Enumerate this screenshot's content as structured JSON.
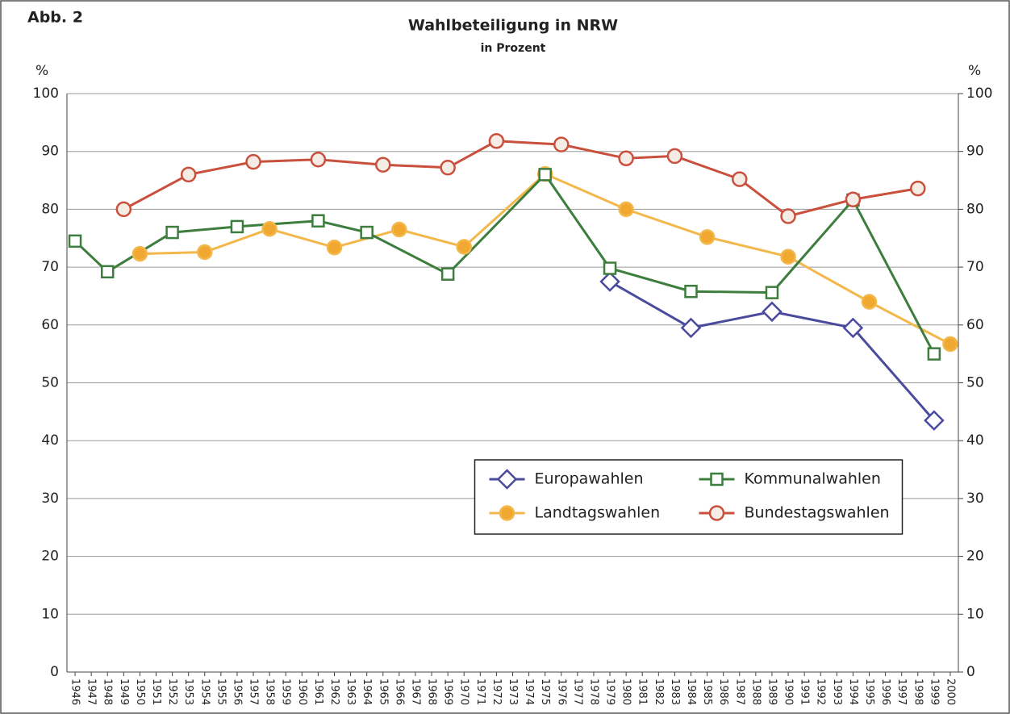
{
  "chart_data": {
    "type": "line",
    "figure_label": "Abb. 2",
    "title": "Wahlbeteiligung in NRW",
    "subtitle": "in Prozent",
    "ylabel": "%",
    "y2label": "%",
    "xlim": [
      1945.5,
      2000.5
    ],
    "xticks": [
      1946,
      1947,
      1948,
      1949,
      1950,
      1951,
      1952,
      1953,
      1954,
      1955,
      1956,
      1957,
      1958,
      1959,
      1960,
      1961,
      1962,
      1963,
      1964,
      1965,
      1966,
      1967,
      1968,
      1969,
      1970,
      1971,
      1972,
      1973,
      1974,
      1975,
      1976,
      1977,
      1978,
      1979,
      1980,
      1981,
      1982,
      1983,
      1984,
      1985,
      1986,
      1987,
      1988,
      1989,
      1990,
      1991,
      1992,
      1993,
      1994,
      1995,
      1996,
      1997,
      1998,
      1999,
      2000
    ],
    "ylim": [
      0,
      100
    ],
    "yticks": [
      0,
      10,
      20,
      30,
      40,
      50,
      60,
      70,
      80,
      90,
      100
    ],
    "y2lim": [
      0,
      100
    ],
    "y2ticks": [
      0,
      10,
      20,
      30,
      40,
      50,
      60,
      70,
      80,
      90,
      100
    ],
    "grid": true,
    "legend": "center",
    "series": [
      {
        "name": "Europawahlen",
        "color": "#4b4b9e",
        "marker": "diamond",
        "marker_fill": "#ffffff",
        "x": [
          1979,
          1984,
          1989,
          1994,
          1999
        ],
        "values": [
          67.5,
          59.5,
          62.3,
          59.5,
          43.5
        ]
      },
      {
        "name": "Landtagswahlen",
        "color": "#f2b84b",
        "marker": "circle",
        "marker_fill": "#f0a830",
        "x": [
          1950,
          1954,
          1958,
          1962,
          1966,
          1970,
          1975,
          1980,
          1985,
          1990,
          1995,
          2000
        ],
        "values": [
          72.3,
          72.6,
          76.6,
          73.4,
          76.5,
          73.5,
          86.1,
          80,
          75.2,
          71.8,
          64,
          56.7
        ]
      },
      {
        "name": "Kommunalwahlen",
        "color": "#3d7d3d",
        "marker": "square",
        "marker_fill": "#ffffff",
        "x": [
          1946,
          1948,
          1952,
          1956,
          1961,
          1964,
          1969,
          1975,
          1979,
          1984,
          1989,
          1994,
          1999
        ],
        "values": [
          74.5,
          69.2,
          76,
          77,
          78,
          76,
          68.8,
          86,
          69.8,
          65.8,
          65.6,
          81.6,
          55
        ]
      },
      {
        "name": "Bundestagswahlen",
        "color": "#c9503c",
        "marker": "circle",
        "marker_fill": "#f6ece6",
        "x": [
          1949,
          1953,
          1957,
          1961,
          1965,
          1969,
          1972,
          1976,
          1980,
          1983,
          1987,
          1990,
          1994,
          1998
        ],
        "values": [
          80,
          86,
          88.2,
          88.6,
          87.7,
          87.2,
          91.8,
          91.2,
          88.8,
          89.2,
          85.2,
          78.8,
          81.7,
          83.6
        ]
      }
    ]
  }
}
